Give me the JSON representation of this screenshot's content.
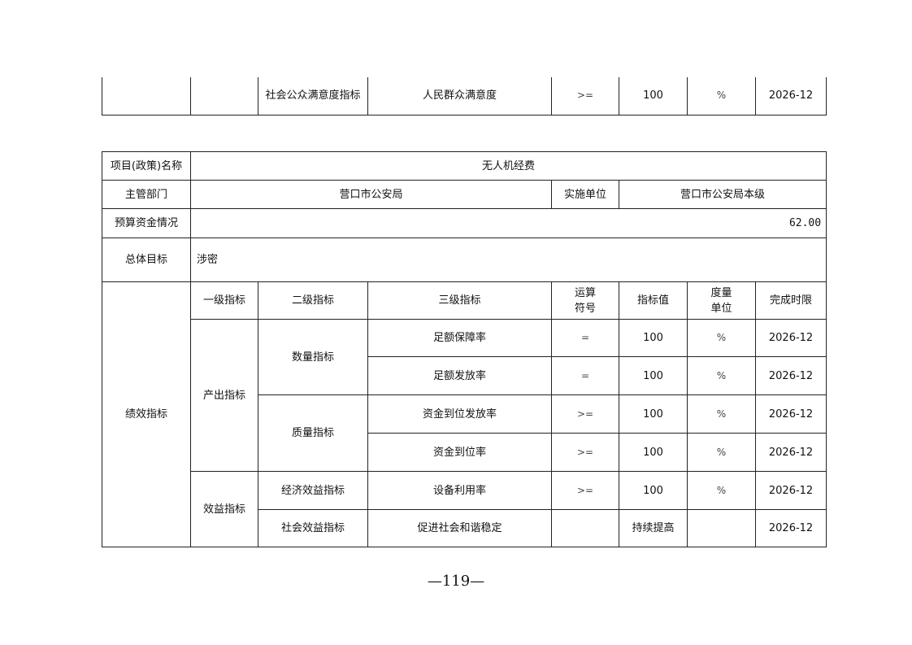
{
  "top_table": {
    "row": {
      "level2": "社会公众满意度指标",
      "level3": "人民群众满意度",
      "operator": ">=",
      "value": "100",
      "unit": "%",
      "deadline": "2026-12"
    }
  },
  "project": {
    "name_label": "项目(政策)名称",
    "name": "无人机经费",
    "dept_label": "主管部门",
    "dept": "营口市公安局",
    "impl_label": "实施单位",
    "impl": "营口市公安局本级",
    "budget_label": "预算资金情况",
    "budget": "62.00",
    "goal_label": "总体目标",
    "goal": "涉密",
    "perf_label": "绩效指标",
    "headers": [
      "一级指标",
      "二级指标",
      "三级指标",
      "运算符号",
      "指标值",
      "度量单位",
      "完成时限"
    ],
    "header_lines": {
      "op": [
        "运算",
        "符号"
      ],
      "unit": [
        "度量",
        "单位"
      ]
    },
    "groups": {
      "output": "产出指标",
      "quantity": "数量指标",
      "quality": "质量指标",
      "benefit": "效益指标",
      "economic": "经济效益指标",
      "social": "社会效益指标"
    },
    "rows": [
      {
        "level3": "足额保障率",
        "operator": "=",
        "value": "100",
        "unit": "%",
        "deadline": "2026-12"
      },
      {
        "level3": "足额发放率",
        "operator": "=",
        "value": "100",
        "unit": "%",
        "deadline": "2026-12"
      },
      {
        "level3": "资金到位发放率",
        "operator": ">=",
        "value": "100",
        "unit": "%",
        "deadline": "2026-12"
      },
      {
        "level3": "资金到位率",
        "operator": ">=",
        "value": "100",
        "unit": "%",
        "deadline": "2026-12"
      },
      {
        "level3": "设备利用率",
        "operator": ">=",
        "value": "100",
        "unit": "%",
        "deadline": "2026-12"
      },
      {
        "level3": "促进社会和谐稳定",
        "operator": "",
        "value": "持续提高",
        "unit": "",
        "deadline": "2026-12"
      }
    ]
  },
  "page_number": "—119—"
}
